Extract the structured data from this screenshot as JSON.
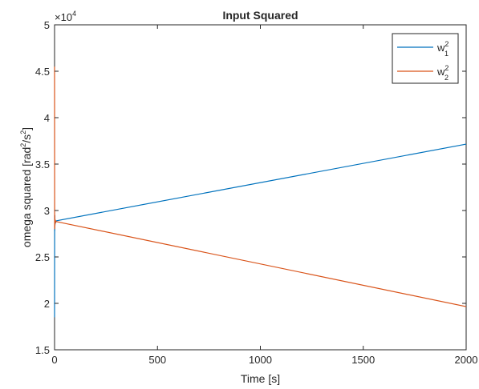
{
  "chart_data": {
    "type": "line",
    "title": "Input Squared",
    "xlabel": "Time [s]",
    "ylabel_parts": {
      "pre": "omega squared [rad",
      "sup1": "2",
      "mid": "/s",
      "sup2": "2",
      "post": "]"
    },
    "exponent": {
      "base": "×10",
      "power": "4"
    },
    "xlim": [
      0,
      2000
    ],
    "ylim": [
      1.5,
      5
    ],
    "y_scale_factor": 10000,
    "x_ticks": [
      0,
      500,
      1000,
      1500,
      2000
    ],
    "y_ticks": [
      1.5,
      2,
      2.5,
      3,
      3.5,
      4,
      4.5,
      5
    ],
    "x_tick_labels": [
      "0",
      "500",
      "1000",
      "1500",
      "2000"
    ],
    "y_tick_labels": [
      "1.5",
      "2",
      "2.5",
      "3",
      "3.5",
      "4",
      "4.5",
      "5"
    ],
    "grid": false,
    "legend_position": "top-right",
    "series": [
      {
        "name": "w",
        "sup": "2",
        "sub": "1",
        "color": "#0072BD",
        "x": [
          0,
          0.5,
          1,
          1.5,
          2,
          3,
          5,
          8,
          10,
          2000
        ],
        "y": [
          1.85,
          2.9,
          2.78,
          2.95,
          2.84,
          2.9,
          2.87,
          2.885,
          2.89,
          3.715
        ]
      },
      {
        "name": "w",
        "sup": "2",
        "sub": "2",
        "color": "#D95319",
        "x": [
          0,
          0.5,
          1,
          1.5,
          2,
          3,
          5,
          8,
          10,
          2000
        ],
        "y": [
          4.55,
          2.8,
          2.95,
          2.82,
          2.9,
          2.86,
          2.89,
          2.88,
          2.88,
          1.965
        ]
      }
    ]
  }
}
